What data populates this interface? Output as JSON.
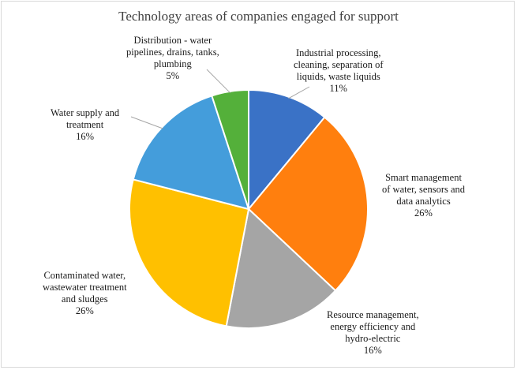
{
  "chart_data": {
    "type": "pie",
    "title": "Technology areas of companies engaged for support",
    "slices": [
      {
        "label": "Industrial processing,\ncleaning, separation of\nliquids, waste liquids",
        "value": 11,
        "value_label": "11%",
        "color": "#3a72c6"
      },
      {
        "label": "Smart management\nof water, sensors and\ndata analytics",
        "value": 26,
        "value_label": "26%",
        "color": "#ff7f0e"
      },
      {
        "label": "Resource management,\nenergy efficiency and\nhydro-electric",
        "value": 16,
        "value_label": "16%",
        "color": "#a5a5a5"
      },
      {
        "label": "Contaminated water,\nwastewater treatment\nand sludges",
        "value": 26,
        "value_label": "26%",
        "color": "#ffc000"
      },
      {
        "label": "Water supply and\ntreatment",
        "value": 16,
        "value_label": "16%",
        "color": "#449ddb"
      },
      {
        "label": "Distribution - water\npipelines, drains, tanks,\nplumbing",
        "value": 5,
        "value_label": "5%",
        "color": "#54b03a"
      }
    ]
  }
}
